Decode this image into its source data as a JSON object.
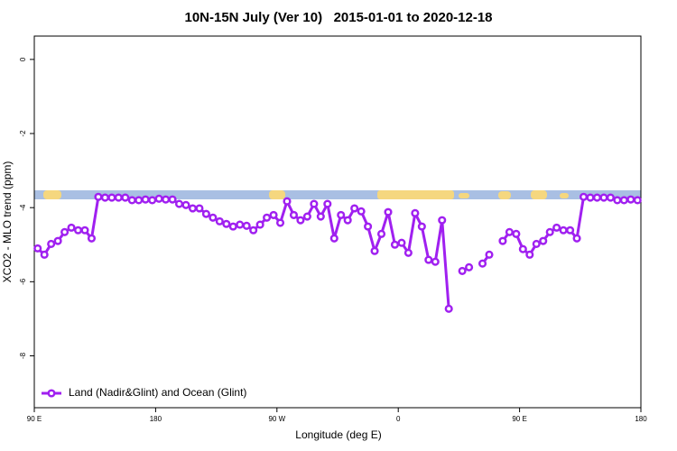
{
  "chart_data": {
    "type": "line",
    "title": "10N-15N July (Ver 10)   2015-01-01 to 2020-12-18",
    "x_label": "Longitude (deg E)",
    "y_label": "XCO2 - MLO trend (ppm)",
    "xlim": [
      90,
      540
    ],
    "ylim": [
      -9.4,
      0.63
    ],
    "xticks": [
      {
        "value": 90,
        "label": "90 E"
      },
      180,
      {
        "value": 270,
        "label": "90 W"
      },
      {
        "value": 360,
        "label": "0"
      },
      {
        "value": 450,
        "label": "90 E"
      },
      {
        "value": 540,
        "label": "180"
      }
    ],
    "yticks": [
      0,
      -2,
      -4,
      -6,
      -8
    ],
    "legend": "bottom-left",
    "x": [
      92.5,
      97.5,
      102.5,
      107.5,
      112.5,
      117.5,
      122.5,
      127.5,
      132.5,
      137.5,
      142.5,
      147.5,
      152.5,
      157.5,
      162.5,
      167.5,
      172.5,
      177.5,
      182.5,
      187.5,
      192.5,
      197.5,
      202.5,
      207.5,
      212.5,
      217.5,
      222.5,
      227.5,
      232.5,
      237.5,
      242.5,
      247.5,
      252.5,
      257.5,
      262.5,
      267.5,
      272.5,
      277.5,
      282.5,
      287.5,
      292.5,
      297.5,
      302.5,
      307.5,
      312.5,
      317.5,
      322.5,
      327.5,
      332.5,
      337.5,
      342.5,
      347.5,
      352.5,
      357.5,
      362.5,
      367.5,
      372.5,
      377.5,
      382.5,
      387.5,
      392.5,
      397.5,
      402.5,
      407.5,
      412.5,
      417.5,
      422.5,
      427.5,
      432.5,
      437.5,
      442.5,
      447.5,
      452.5,
      457.5,
      462.5,
      467.5,
      472.5,
      477.5,
      482.5,
      487.5,
      492.5,
      497.5,
      502.5,
      507.5,
      512.5,
      517.5,
      522.5,
      527.5,
      532.5,
      537.5
    ],
    "series": [
      {
        "name": "Land (Nadir&Glint) and Ocean (Glint)",
        "color": "#a020f0",
        "values": [
          -5.1,
          -5.27,
          -4.98,
          -4.9,
          -4.66,
          -4.54,
          -4.61,
          -4.61,
          -4.83,
          -3.71,
          -3.73,
          -3.73,
          -3.73,
          -3.73,
          -3.8,
          -3.8,
          -3.78,
          -3.8,
          -3.76,
          -3.78,
          -3.78,
          -3.9,
          -3.93,
          -4.02,
          -4.02,
          -4.17,
          -4.27,
          -4.37,
          -4.44,
          -4.51,
          -4.46,
          -4.49,
          -4.61,
          -4.46,
          -4.27,
          -4.2,
          -4.41,
          -3.83,
          -4.2,
          -4.34,
          -4.24,
          -3.9,
          -4.24,
          -3.9,
          -4.83,
          -4.2,
          -4.34,
          -4.02,
          -4.1,
          -4.51,
          -5.17,
          -4.71,
          -4.12,
          -5.0,
          -4.95,
          -5.22,
          -4.15,
          -4.51,
          -5.41,
          -5.46,
          -4.34,
          -6.73,
          null,
          -5.71,
          -5.61,
          null,
          -5.51,
          -5.27,
          null,
          -4.9,
          -4.66,
          -4.71,
          -5.12,
          -5.27,
          -4.98,
          -4.9,
          -4.66,
          -4.54,
          -4.61,
          -4.61,
          -4.83,
          -3.71,
          -3.73,
          -3.73,
          -3.73,
          -3.73,
          -3.8,
          -3.8,
          -3.78,
          -3.8
        ]
      }
    ]
  }
}
